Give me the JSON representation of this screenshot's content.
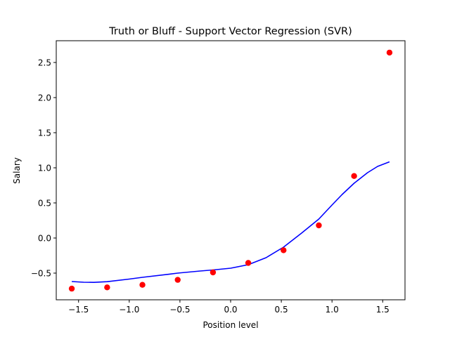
{
  "chart_data": {
    "type": "scatter",
    "title": "Truth or Bluff - Support Vector Regression (SVR)",
    "xlabel": "Position level",
    "ylabel": "Salary",
    "xlim": [
      -1.72,
      1.72
    ],
    "ylim": [
      -0.88,
      2.81
    ],
    "x_ticks": [
      -1.5,
      -1.0,
      -0.5,
      0.0,
      0.5,
      1.0,
      1.5
    ],
    "x_tick_labels": [
      "−1.5",
      "−1.0",
      "−0.5",
      "0.0",
      "0.5",
      "1.0",
      "1.5"
    ],
    "y_ticks": [
      -0.5,
      0.0,
      0.5,
      1.0,
      1.5,
      2.0,
      2.5
    ],
    "y_tick_labels": [
      "−0.5",
      "0.0",
      "0.5",
      "1.0",
      "1.5",
      "2.0",
      "2.5"
    ],
    "grid": false,
    "series": [
      {
        "kind": "scatter",
        "color": "#ff0000",
        "x": [
          -1.567,
          -1.218,
          -0.87,
          -0.522,
          -0.174,
          0.174,
          0.522,
          0.87,
          1.218,
          1.567
        ],
        "y": [
          -0.721,
          -0.703,
          -0.667,
          -0.596,
          -0.49,
          -0.355,
          -0.174,
          0.18,
          0.883,
          2.641
        ]
      },
      {
        "kind": "line",
        "color": "#0000ff",
        "x": [
          -1.567,
          -1.45,
          -1.35,
          -1.218,
          -1.0,
          -0.87,
          -0.6,
          -0.522,
          -0.3,
          -0.174,
          0.0,
          0.174,
          0.35,
          0.522,
          0.7,
          0.87,
          1.0,
          1.1,
          1.218,
          1.35,
          1.45,
          1.567
        ],
        "y": [
          -0.62,
          -0.63,
          -0.632,
          -0.622,
          -0.585,
          -0.56,
          -0.514,
          -0.5,
          -0.47,
          -0.455,
          -0.43,
          -0.38,
          -0.28,
          -0.13,
          0.07,
          0.27,
          0.47,
          0.62,
          0.78,
          0.93,
          1.02,
          1.085
        ]
      }
    ]
  }
}
